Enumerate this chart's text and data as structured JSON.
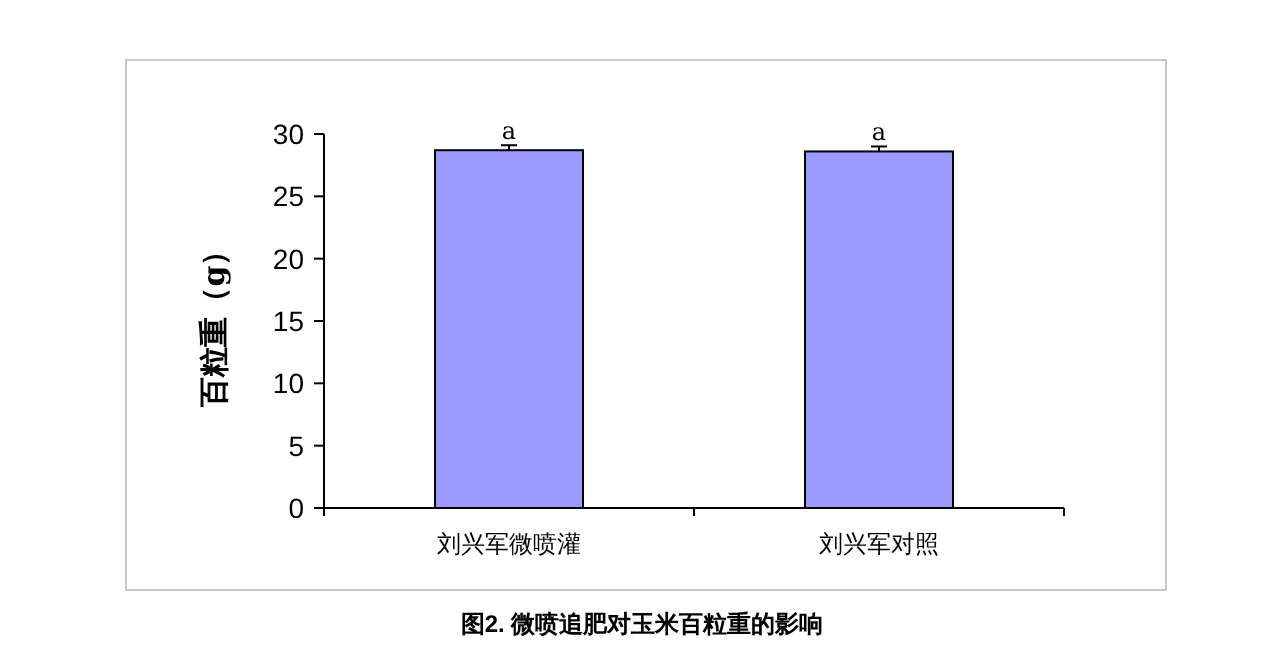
{
  "chart_data": {
    "type": "bar",
    "ylabel": "百粒重（g）",
    "categories": [
      "刘兴军微喷灌",
      "刘兴军对照"
    ],
    "values": [
      28.7,
      28.6
    ],
    "errors": [
      0.4,
      0.4
    ],
    "color": "#9999ff",
    "ylim": [
      0,
      30
    ],
    "yticks": [
      0,
      5,
      10,
      15,
      20,
      25,
      30
    ],
    "annotations": [
      {
        "text": "a",
        "x": "刘兴军微喷灌",
        "y": 29.1
      },
      {
        "text": "a",
        "x": "刘兴军对照",
        "y": 29.0
      },
      "图2. 微喷追肥对玉米百粒重的影响"
    ]
  }
}
